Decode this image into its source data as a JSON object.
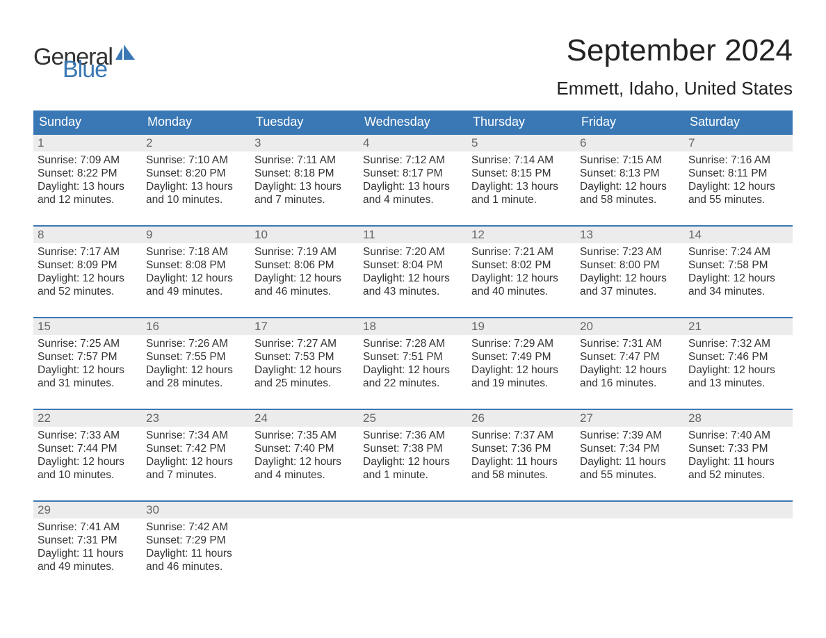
{
  "logo": {
    "part1": "General",
    "part2": "Blue"
  },
  "title": "September 2024",
  "location": "Emmett, Idaho, United States",
  "colors": {
    "header_bg": "#3a78b5",
    "header_text": "#ffffff",
    "daynum_bg": "#ececec",
    "daynum_border": "#3a78b5",
    "daynum_text": "#666666",
    "body_text": "#333333",
    "page_bg": "#ffffff",
    "logo_blue": "#3a78b5"
  },
  "day_headers": [
    "Sunday",
    "Monday",
    "Tuesday",
    "Wednesday",
    "Thursday",
    "Friday",
    "Saturday"
  ],
  "weeks": [
    [
      {
        "n": "1",
        "sr": "Sunrise: 7:09 AM",
        "ss": "Sunset: 8:22 PM",
        "dl": "Daylight: 13 hours and 12 minutes."
      },
      {
        "n": "2",
        "sr": "Sunrise: 7:10 AM",
        "ss": "Sunset: 8:20 PM",
        "dl": "Daylight: 13 hours and 10 minutes."
      },
      {
        "n": "3",
        "sr": "Sunrise: 7:11 AM",
        "ss": "Sunset: 8:18 PM",
        "dl": "Daylight: 13 hours and 7 minutes."
      },
      {
        "n": "4",
        "sr": "Sunrise: 7:12 AM",
        "ss": "Sunset: 8:17 PM",
        "dl": "Daylight: 13 hours and 4 minutes."
      },
      {
        "n": "5",
        "sr": "Sunrise: 7:14 AM",
        "ss": "Sunset: 8:15 PM",
        "dl": "Daylight: 13 hours and 1 minute."
      },
      {
        "n": "6",
        "sr": "Sunrise: 7:15 AM",
        "ss": "Sunset: 8:13 PM",
        "dl": "Daylight: 12 hours and 58 minutes."
      },
      {
        "n": "7",
        "sr": "Sunrise: 7:16 AM",
        "ss": "Sunset: 8:11 PM",
        "dl": "Daylight: 12 hours and 55 minutes."
      }
    ],
    [
      {
        "n": "8",
        "sr": "Sunrise: 7:17 AM",
        "ss": "Sunset: 8:09 PM",
        "dl": "Daylight: 12 hours and 52 minutes."
      },
      {
        "n": "9",
        "sr": "Sunrise: 7:18 AM",
        "ss": "Sunset: 8:08 PM",
        "dl": "Daylight: 12 hours and 49 minutes."
      },
      {
        "n": "10",
        "sr": "Sunrise: 7:19 AM",
        "ss": "Sunset: 8:06 PM",
        "dl": "Daylight: 12 hours and 46 minutes."
      },
      {
        "n": "11",
        "sr": "Sunrise: 7:20 AM",
        "ss": "Sunset: 8:04 PM",
        "dl": "Daylight: 12 hours and 43 minutes."
      },
      {
        "n": "12",
        "sr": "Sunrise: 7:21 AM",
        "ss": "Sunset: 8:02 PM",
        "dl": "Daylight: 12 hours and 40 minutes."
      },
      {
        "n": "13",
        "sr": "Sunrise: 7:23 AM",
        "ss": "Sunset: 8:00 PM",
        "dl": "Daylight: 12 hours and 37 minutes."
      },
      {
        "n": "14",
        "sr": "Sunrise: 7:24 AM",
        "ss": "Sunset: 7:58 PM",
        "dl": "Daylight: 12 hours and 34 minutes."
      }
    ],
    [
      {
        "n": "15",
        "sr": "Sunrise: 7:25 AM",
        "ss": "Sunset: 7:57 PM",
        "dl": "Daylight: 12 hours and 31 minutes."
      },
      {
        "n": "16",
        "sr": "Sunrise: 7:26 AM",
        "ss": "Sunset: 7:55 PM",
        "dl": "Daylight: 12 hours and 28 minutes."
      },
      {
        "n": "17",
        "sr": "Sunrise: 7:27 AM",
        "ss": "Sunset: 7:53 PM",
        "dl": "Daylight: 12 hours and 25 minutes."
      },
      {
        "n": "18",
        "sr": "Sunrise: 7:28 AM",
        "ss": "Sunset: 7:51 PM",
        "dl": "Daylight: 12 hours and 22 minutes."
      },
      {
        "n": "19",
        "sr": "Sunrise: 7:29 AM",
        "ss": "Sunset: 7:49 PM",
        "dl": "Daylight: 12 hours and 19 minutes."
      },
      {
        "n": "20",
        "sr": "Sunrise: 7:31 AM",
        "ss": "Sunset: 7:47 PM",
        "dl": "Daylight: 12 hours and 16 minutes."
      },
      {
        "n": "21",
        "sr": "Sunrise: 7:32 AM",
        "ss": "Sunset: 7:46 PM",
        "dl": "Daylight: 12 hours and 13 minutes."
      }
    ],
    [
      {
        "n": "22",
        "sr": "Sunrise: 7:33 AM",
        "ss": "Sunset: 7:44 PM",
        "dl": "Daylight: 12 hours and 10 minutes."
      },
      {
        "n": "23",
        "sr": "Sunrise: 7:34 AM",
        "ss": "Sunset: 7:42 PM",
        "dl": "Daylight: 12 hours and 7 minutes."
      },
      {
        "n": "24",
        "sr": "Sunrise: 7:35 AM",
        "ss": "Sunset: 7:40 PM",
        "dl": "Daylight: 12 hours and 4 minutes."
      },
      {
        "n": "25",
        "sr": "Sunrise: 7:36 AM",
        "ss": "Sunset: 7:38 PM",
        "dl": "Daylight: 12 hours and 1 minute."
      },
      {
        "n": "26",
        "sr": "Sunrise: 7:37 AM",
        "ss": "Sunset: 7:36 PM",
        "dl": "Daylight: 11 hours and 58 minutes."
      },
      {
        "n": "27",
        "sr": "Sunrise: 7:39 AM",
        "ss": "Sunset: 7:34 PM",
        "dl": "Daylight: 11 hours and 55 minutes."
      },
      {
        "n": "28",
        "sr": "Sunrise: 7:40 AM",
        "ss": "Sunset: 7:33 PM",
        "dl": "Daylight: 11 hours and 52 minutes."
      }
    ],
    [
      {
        "n": "29",
        "sr": "Sunrise: 7:41 AM",
        "ss": "Sunset: 7:31 PM",
        "dl": "Daylight: 11 hours and 49 minutes."
      },
      {
        "n": "30",
        "sr": "Sunrise: 7:42 AM",
        "ss": "Sunset: 7:29 PM",
        "dl": "Daylight: 11 hours and 46 minutes."
      },
      null,
      null,
      null,
      null,
      null
    ]
  ]
}
